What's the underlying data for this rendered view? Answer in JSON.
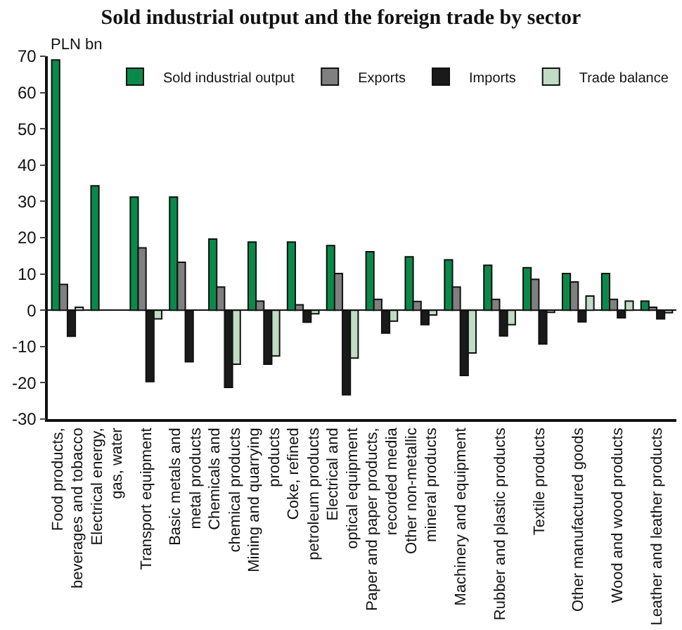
{
  "chart_data": {
    "type": "bar",
    "title": "Sold industrial output and the foreign trade by sector",
    "ylabel": "PLN bn",
    "categories": [
      "Food products,\nbeverages and tobacco",
      "Electrical energy,\ngas, water",
      "Transport equipment",
      "Basic metals and\nmetal products",
      "Chemicals and\nchemical products",
      "Mining and quarrying\nproducts",
      "Coke, refined\npetroleum products",
      "Electrical and\noptical equipment",
      "Paper and paper products,\nrecorded media",
      "Other non-metallic\nmineral products",
      "Machinery and equipment",
      "Rubber and plastic products",
      "Textile products",
      "Other manufactured goods",
      "Wood and wood products",
      "Leather and leather products"
    ],
    "series": [
      {
        "name": "Sold industrial output",
        "color": "#0a8a4a",
        "values": [
          69,
          34.3,
          31.2,
          31.2,
          19.6,
          18.8,
          18.8,
          17.8,
          16.1,
          14.7,
          13.9,
          12.4,
          11.7,
          10.1,
          10.1,
          2.5
        ]
      },
      {
        "name": "Exports",
        "color": "#808080",
        "values": [
          7.1,
          null,
          17.2,
          13.2,
          6.4,
          2.5,
          1.5,
          10.1,
          3.0,
          2.4,
          6.4,
          3.0,
          8.5,
          7.8,
          3.0,
          0.8
        ]
      },
      {
        "name": "Imports",
        "color": "#1a1a1a",
        "values": [
          -7.2,
          null,
          -19.7,
          -14.2,
          -21.3,
          -14.9,
          -3.3,
          -23.3,
          -6.3,
          -4.0,
          -18,
          -7.1,
          -9.3,
          -3.2,
          -2.1,
          -2.4
        ]
      },
      {
        "name": "Trade balance",
        "color": "#c0dcc4",
        "values": [
          0.8,
          null,
          -2.4,
          null,
          -14.9,
          -12.6,
          -1.0,
          -13.2,
          -3.0,
          -1.3,
          -11.8,
          -4.0,
          -0.6,
          3.9,
          2.5,
          -0.7
        ]
      }
    ],
    "ylim": [
      -30,
      70
    ],
    "yticks": [
      -30,
      -20,
      -10,
      0,
      10,
      20,
      30,
      40,
      50,
      60,
      70
    ],
    "legend": "top right"
  }
}
